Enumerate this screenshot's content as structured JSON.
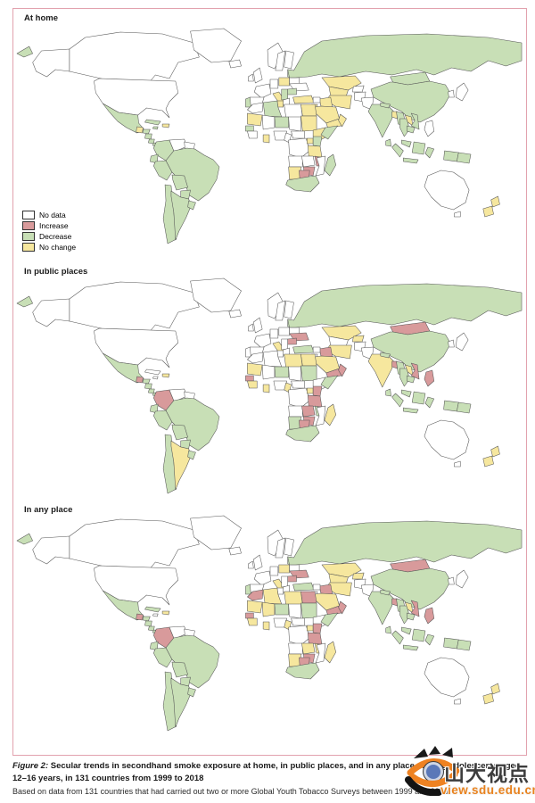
{
  "figure": {
    "border_color": "#e2a2ae",
    "panels": [
      {
        "label": "At home"
      },
      {
        "label": "In public places"
      },
      {
        "label": "In any place"
      }
    ],
    "legend": {
      "items": [
        {
          "key": "no_data",
          "label": "No data"
        },
        {
          "key": "increase",
          "label": "Increase"
        },
        {
          "key": "decrease",
          "label": "Decrease"
        },
        {
          "key": "no_change",
          "label": "No change"
        }
      ]
    },
    "colors": {
      "no_data": "#ffffff",
      "increase": "#d89a9b",
      "decrease": "#c8dfb6",
      "no_change": "#f6e79e",
      "border": "#555555"
    }
  },
  "caption": {
    "label": "Figure 2:",
    "title": "Secular trends in secondhand smoke exposure at home, in public places, and in any place, among adolescents aged 12–16 years, in 131 countries from 1999 to 2018",
    "note": "Based on data from 131 countries that had carried out two or more Global Youth Tobacco Surveys between 1999 and 2018."
  },
  "watermark": {
    "text": "山大视点",
    "url": "view.sdu.edu.cn"
  },
  "map_statuses": {
    "at_home": {
      "mexico": "decrease",
      "honduras": "decrease",
      "nicaragua": "decrease",
      "costarica": "decrease",
      "panama": "decrease",
      "cuba": "decrease",
      "jamaica": "decrease",
      "colombia": "decrease",
      "ecuador": "decrease",
      "peru": "decrease",
      "brazil": "decrease",
      "bolivia": "decrease",
      "paraguay": "decrease",
      "chile": "decrease",
      "argentina": "decrease",
      "uruguay": "decrease",
      "portugal": "decrease",
      "baltics": "decrease",
      "romania": "decrease",
      "balkans": "decrease",
      "russia": "decrease",
      "mongolia": "decrease",
      "china": "decrease",
      "india": "decrease",
      "algeria": "decrease",
      "niger": "decrease",
      "senegal": "decrease",
      "somalia": "decrease",
      "kenya": "decrease",
      "southafrica": "decrease",
      "madagascar": "decrease",
      "myanmar": "decrease",
      "thailand": "decrease",
      "vietnam": "decrease",
      "cambodia": "decrease",
      "malaysia": "decrease",
      "indonesia": "decrease",
      "png": "decrease",
      "srilanka": "decrease",
      "nepal": "decrease",
      "guatemala": "no_change",
      "hispaniola": "no_change",
      "italy": "no_change",
      "poland": "no_change",
      "turkey": "no_change",
      "kazakhstan": "no_change",
      "centralasia": "no_change",
      "iran": "no_change",
      "iraq": "no_change",
      "saudi": "no_change",
      "yemen": "no_change",
      "oman": "no_change",
      "jordan": "no_change",
      "egypt": "no_change",
      "tunisia": "no_change",
      "mauritania": "no_change",
      "sudan": "no_change",
      "ethiopia": "no_change",
      "uganda": "no_change",
      "tanzania": "no_change",
      "namibia": "no_change",
      "laos": "no_change",
      "bangladesh": "no_change",
      "ghana": "no_change",
      "nz": "no_change",
      "malawi": "increase",
      "zimbabwe": "increase",
      "botswana": "increase"
    },
    "in_public_places": {
      "mexico": "decrease",
      "honduras": "decrease",
      "nicaragua": "decrease",
      "costarica": "decrease",
      "panama": "decrease",
      "ecuador": "decrease",
      "peru": "decrease",
      "brazil": "decrease",
      "bolivia": "decrease",
      "chile": "decrease",
      "uruguay": "decrease",
      "russia": "decrease",
      "china": "decrease",
      "turkey": "decrease",
      "baltics": "decrease",
      "niger": "decrease",
      "sudan": "decrease",
      "somalia": "decrease",
      "namibia": "decrease",
      "southafrica": "decrease",
      "malawi": "decrease",
      "myanmar": "decrease",
      "thailand": "decrease",
      "cambodia": "decrease",
      "malaysia": "decrease",
      "indonesia": "decrease",
      "png": "decrease",
      "nepal": "decrease",
      "srilanka": "decrease",
      "paraguay": "decrease",
      "argentina": "no_change",
      "hispaniola": "no_change",
      "italy": "no_change",
      "kazakhstan": "no_change",
      "kyrgyz": "no_change",
      "india": "no_change",
      "iran": "no_change",
      "saudi": "no_change",
      "egypt": "no_change",
      "libya": "no_change",
      "mauritania": "no_change",
      "ghana": "no_change",
      "guinea": "no_change",
      "cameroon": "no_change",
      "uganda": "no_change",
      "madagascar": "no_change",
      "laos": "no_change",
      "nz": "no_change",
      "guatemala": "increase",
      "colombia": "increase",
      "ukraine": "increase",
      "romania": "increase",
      "mongolia": "increase",
      "iraq": "increase",
      "yemen": "increase",
      "oman": "increase",
      "senegal": "increase",
      "kenya": "increase",
      "tanzania": "increase",
      "zambia": "increase",
      "zimbabwe": "increase",
      "botswana": "increase",
      "vietnam": "increase",
      "philippines": "increase",
      "bangladesh": "increase"
    },
    "in_any_place": {
      "mexico": "decrease",
      "honduras": "decrease",
      "nicaragua": "decrease",
      "costarica": "decrease",
      "panama": "decrease",
      "cuba": "decrease",
      "ecuador": "decrease",
      "peru": "decrease",
      "brazil": "decrease",
      "bolivia": "decrease",
      "paraguay": "decrease",
      "chile": "decrease",
      "argentina": "decrease",
      "uruguay": "decrease",
      "portugal": "decrease",
      "russia": "decrease",
      "china": "decrease",
      "india": "decrease",
      "turkey": "decrease",
      "baltics": "decrease",
      "niger": "decrease",
      "sudan": "decrease",
      "somalia": "decrease",
      "southafrica": "decrease",
      "myanmar": "decrease",
      "thailand": "decrease",
      "cambodia": "decrease",
      "malaysia": "decrease",
      "indonesia": "decrease",
      "png": "decrease",
      "srilanka": "decrease",
      "nepal": "decrease",
      "kazakhstan": "no_change",
      "centralasia": "no_change",
      "kyrgyz": "no_change",
      "saudi": "no_change",
      "iran": "no_change",
      "mauritania": "no_change",
      "mali": "no_change",
      "algeria": "no_change",
      "libya": "no_change",
      "uganda": "no_change",
      "ghana": "no_change",
      "guinea": "no_change",
      "cameroon": "no_change",
      "zambia": "no_change",
      "malawi": "no_change",
      "namibia": "no_change",
      "madagascar": "no_change",
      "laos": "no_change",
      "italy": "no_change",
      "poland": "no_change",
      "hispaniola": "no_change",
      "nz": "no_change",
      "guatemala": "increase",
      "colombia": "increase",
      "morocco": "increase",
      "senegal": "increase",
      "egypt": "increase",
      "iraq": "increase",
      "yemen": "increase",
      "oman": "increase",
      "ukraine": "increase",
      "romania": "increase",
      "mongolia": "increase",
      "kenya": "increase",
      "tanzania": "increase",
      "zimbabwe": "increase",
      "botswana": "increase",
      "vietnam": "increase",
      "philippines": "increase",
      "bangladesh": "increase"
    }
  }
}
